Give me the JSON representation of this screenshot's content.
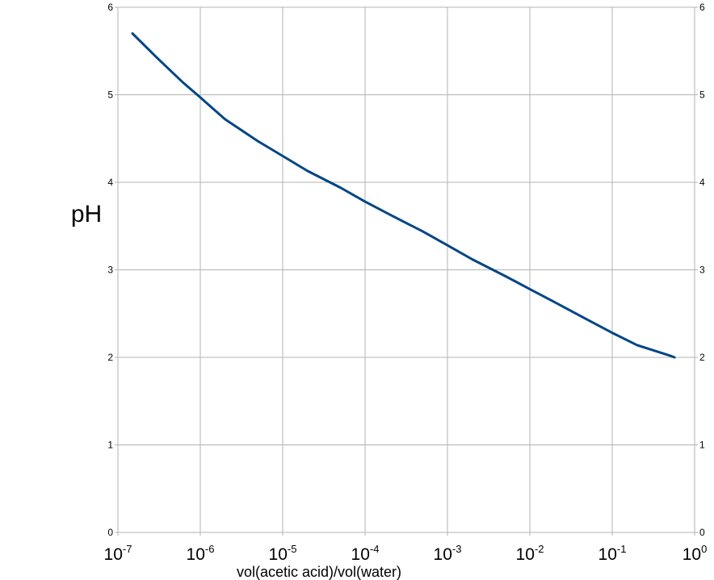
{
  "chart_data": {
    "type": "line",
    "xscale": "log",
    "xlabel": "vol(acetic acid)/vol(water)",
    "ylabel": "pH",
    "xlim": [
      1e-07,
      1
    ],
    "ylim": [
      0,
      6
    ],
    "grid": true,
    "line_color": "#004586",
    "grid_color": "#b3b3b3",
    "x_ticks": [
      {
        "base": "10",
        "exp": "-7",
        "value": 1e-07
      },
      {
        "base": "10",
        "exp": "-6",
        "value": 1e-06
      },
      {
        "base": "10",
        "exp": "-5",
        "value": 1e-05
      },
      {
        "base": "10",
        "exp": "-4",
        "value": 0.0001
      },
      {
        "base": "10",
        "exp": "-3",
        "value": 0.001
      },
      {
        "base": "10",
        "exp": "-2",
        "value": 0.01
      },
      {
        "base": "10",
        "exp": "-1",
        "value": 0.1
      },
      {
        "base": "10",
        "exp": "0",
        "value": 1
      }
    ],
    "y_ticks": [
      "0",
      "1",
      "2",
      "3",
      "4",
      "5",
      "6"
    ],
    "series": [
      {
        "x": [
          1.5e-07,
          3e-07,
          6e-07,
          1e-06,
          2e-06,
          5e-06,
          1e-05,
          2e-05,
          5e-05,
          0.0001,
          0.0002,
          0.0005,
          0.001,
          0.002,
          0.005,
          0.01,
          0.02,
          0.05,
          0.1,
          0.2,
          0.5,
          0.57
        ],
        "values": [
          5.7,
          5.42,
          5.15,
          4.97,
          4.72,
          4.47,
          4.3,
          4.13,
          3.94,
          3.78,
          3.63,
          3.44,
          3.28,
          3.12,
          2.93,
          2.78,
          2.63,
          2.43,
          2.28,
          2.14,
          2.02,
          2.0
        ]
      }
    ]
  }
}
